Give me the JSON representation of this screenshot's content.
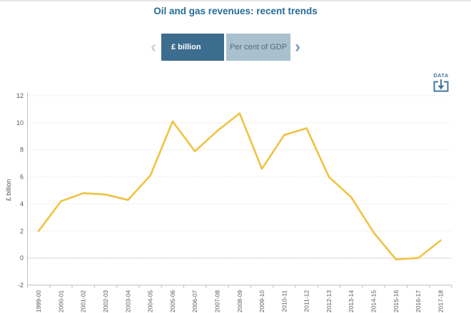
{
  "page": {
    "title": "Oil and gas revenues: recent trends"
  },
  "nav": {
    "prev_icon": "‹",
    "next_icon": "›"
  },
  "tabs": [
    {
      "label": "£ billion",
      "selected": true
    },
    {
      "label": "Per cent of GDP",
      "selected": false
    }
  ],
  "download": {
    "label": "DATA"
  },
  "colors": {
    "title": "#266C97",
    "tab_selected_bg": "#3C6C8E",
    "tab_selected_text": "#FFFFFF",
    "tab_unselected_bg": "#A9C0CE",
    "tab_unselected_text": "#4F6F7F",
    "chevron_left": "#CBD1D4",
    "chevron_right": "#7E9DB1",
    "download_icon": "#4678A1",
    "line": "#EFC343",
    "axis_text": "#595959",
    "gridline": "#DCDCDC",
    "zero_line": "#808080",
    "axis_line": "#C0C0C0"
  },
  "chart_data": {
    "type": "line",
    "title": "Oil and gas revenues: recent trends",
    "xlabel": "",
    "ylabel": "£ billion",
    "ylim": [
      -2,
      12
    ],
    "yticks": [
      -2,
      0,
      2,
      4,
      6,
      8,
      10,
      12
    ],
    "grid": "horizontal dotted",
    "legend": "none",
    "categories": [
      "1999-00",
      "2000-01",
      "2001-02",
      "2002-03",
      "2003-04",
      "2004-05",
      "2005-06",
      "2006-07",
      "2007-08",
      "2008-09",
      "2009-10",
      "2010-11",
      "2011-12",
      "2012-13",
      "2013-14",
      "2014-15",
      "2015-16",
      "2016-17",
      "2017-18"
    ],
    "series": [
      {
        "name": "£ billion",
        "values": [
          2.0,
          4.2,
          4.8,
          4.7,
          4.3,
          6.1,
          10.1,
          7.9,
          9.4,
          10.7,
          6.6,
          9.1,
          9.6,
          6.0,
          4.5,
          1.9,
          -0.1,
          0.0,
          1.3
        ]
      }
    ]
  }
}
